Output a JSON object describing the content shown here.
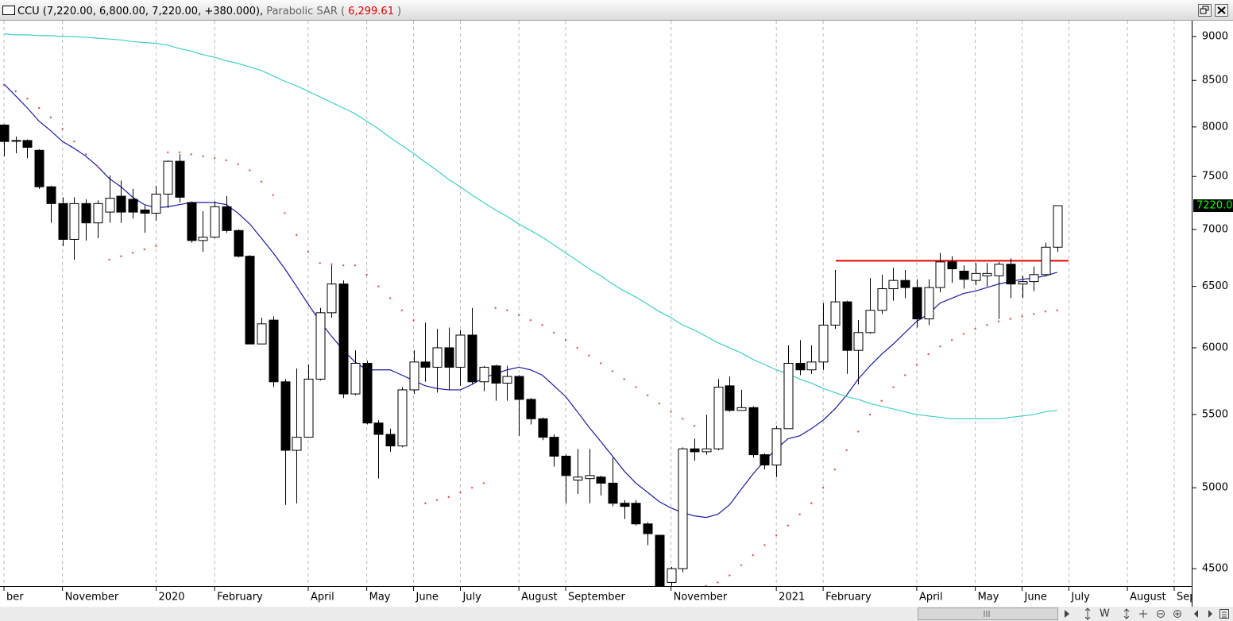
{
  "chart_data": {
    "type": "candlestick",
    "title_parts": [
      {
        "text": "CCU (7,220.00, 6,800.00, 7,220.00, +380.000),",
        "color": "#000000"
      },
      {
        "text": "Parabolic SAR (",
        "color": "#606060"
      },
      {
        "text": "6,299.61",
        "color": "#e00000"
      },
      {
        "text": ")",
        "color": "#606060"
      }
    ],
    "log_scale": true,
    "ylim": [
      4399,
      9188
    ],
    "yticks": [
      4500,
      5000,
      5500,
      6000,
      6500,
      7000,
      7500,
      8000,
      8500,
      9000
    ],
    "grid": true,
    "last_label": "7220.0",
    "zoom_label": "W",
    "categories": [
      "ber",
      null,
      null,
      null,
      null,
      "November",
      null,
      null,
      null,
      null,
      null,
      null,
      null,
      "2020",
      null,
      null,
      null,
      null,
      "February",
      null,
      null,
      null,
      null,
      null,
      null,
      null,
      "April",
      null,
      null,
      null,
      null,
      "May",
      null,
      null,
      null,
      "June",
      null,
      null,
      null,
      "July",
      null,
      null,
      null,
      null,
      "August",
      null,
      null,
      null,
      "September",
      null,
      null,
      null,
      null,
      null,
      null,
      null,
      null,
      "November",
      null,
      null,
      null,
      null,
      null,
      null,
      null,
      null,
      "2021",
      null,
      null,
      null,
      "February",
      null,
      null,
      null,
      null,
      null,
      null,
      null,
      "April",
      null,
      null,
      null,
      null,
      "May",
      null,
      null,
      null,
      "June",
      null,
      null,
      null,
      "July",
      null,
      null,
      null,
      null,
      "August",
      null,
      null,
      null,
      "Sep"
    ],
    "open": [
      8020,
      7860,
      7860,
      7760,
      7400,
      7240,
      6910,
      7240,
      7060,
      7160,
      7310,
      7280,
      7180,
      7150,
      7330,
      7650,
      7250,
      6900,
      6930,
      7210,
      6990,
      6760,
      6030,
      6220,
      5740,
      5250,
      5340,
      5760,
      6280,
      6520,
      5650,
      5880,
      5440,
      5360,
      5280,
      5680,
      5890,
      5850,
      6000,
      5850,
      6100,
      5740,
      5860,
      5730,
      5780,
      5610,
      5470,
      5340,
      5210,
      5050,
      5060,
      5070,
      5030,
      4900,
      4900,
      4770,
      4700,
      4420,
      4500,
      5260,
      5240,
      5260,
      5710,
      5530,
      5550,
      5220,
      5150,
      5400,
      5880,
      5830,
      5890,
      6180,
      6370,
      5980,
      6120,
      6300,
      6480,
      6550,
      6490,
      6230,
      6490,
      6710,
      6630,
      6550,
      6590,
      6590,
      6690,
      6520,
      6540,
      6600,
      6840,
      null,
      null,
      null,
      null,
      null,
      null,
      null,
      null,
      null,
      null
    ],
    "high": [
      8030,
      7900,
      7870,
      7770,
      7410,
      7300,
      7300,
      7280,
      7270,
      7510,
      7460,
      7380,
      7220,
      7410,
      7660,
      7720,
      7260,
      7170,
      7260,
      7310,
      7000,
      6770,
      6240,
      6250,
      5760,
      5840,
      5870,
      6320,
      6680,
      6550,
      5980,
      5900,
      5460,
      5400,
      5700,
      5980,
      6200,
      6150,
      6160,
      6140,
      6320,
      5860,
      5870,
      5860,
      5790,
      5620,
      5480,
      5360,
      5220,
      5260,
      5260,
      5080,
      5200,
      4920,
      4920,
      4780,
      4700,
      4510,
      5270,
      5330,
      5500,
      5760,
      5780,
      5680,
      5560,
      5230,
      5420,
      6020,
      6060,
      6020,
      6360,
      6640,
      6380,
      6220,
      6570,
      6600,
      6660,
      6640,
      6560,
      6560,
      6790,
      6760,
      6680,
      6700,
      6700,
      6710,
      6740,
      6590,
      6670,
      6880,
      7220,
      null,
      null,
      null,
      null,
      null,
      null,
      null,
      null,
      null,
      null
    ],
    "low": [
      7700,
      7730,
      7680,
      7380,
      7060,
      6850,
      6730,
      6900,
      6920,
      7060,
      7060,
      7100,
      6970,
      7080,
      7200,
      7250,
      6880,
      6800,
      6920,
      6970,
      6750,
      6030,
      6030,
      5700,
      4890,
      4900,
      5340,
      5750,
      6240,
      5620,
      5640,
      5430,
      5060,
      5240,
      5270,
      5650,
      5740,
      5660,
      5680,
      5710,
      5720,
      5670,
      5600,
      5600,
      5350,
      5430,
      5320,
      5140,
      4900,
      4960,
      4900,
      4950,
      4880,
      4800,
      4760,
      4640,
      4400,
      4400,
      4480,
      5180,
      5220,
      5250,
      5520,
      5530,
      5200,
      5120,
      5070,
      5400,
      5790,
      5800,
      5830,
      6150,
      5800,
      5720,
      6110,
      6270,
      6380,
      6400,
      6160,
      6180,
      6450,
      6530,
      6480,
      6510,
      6500,
      6230,
      6400,
      6400,
      6460,
      6590,
      6800,
      null,
      null,
      null,
      null,
      null,
      null,
      null,
      null,
      null,
      null
    ],
    "close": [
      7850,
      7860,
      7790,
      7400,
      7240,
      6910,
      7240,
      7060,
      7240,
      7290,
      7160,
      7160,
      7150,
      7330,
      7650,
      7300,
      6900,
      6930,
      7210,
      6990,
      6760,
      6030,
      6190,
      5740,
      5250,
      5340,
      5760,
      6280,
      6520,
      5650,
      5880,
      5440,
      5360,
      5280,
      5680,
      5890,
      5850,
      6000,
      5850,
      6100,
      5740,
      5850,
      5730,
      5780,
      5610,
      5470,
      5340,
      5210,
      5080,
      5070,
      5080,
      5030,
      4900,
      4880,
      4770,
      4710,
      4400,
      4500,
      5260,
      5240,
      5260,
      5700,
      5530,
      5550,
      5220,
      5150,
      5400,
      5880,
      5830,
      5890,
      6180,
      6370,
      5980,
      6120,
      6300,
      6480,
      6550,
      6490,
      6230,
      6490,
      6710,
      6650,
      6560,
      6610,
      6610,
      6690,
      6520,
      6540,
      6600,
      6840,
      7220,
      null,
      null,
      null,
      null,
      null,
      null,
      null,
      null,
      null,
      null
    ],
    "sar_color": "#e05050",
    "sar": [
      8450,
      8380,
      8300,
      8200,
      8100,
      7980,
      7850,
      7720,
      7600,
      6730,
      6760,
      6790,
      6820,
      6850,
      7740,
      7740,
      7720,
      7700,
      7680,
      7660,
      7620,
      7560,
      7450,
      7320,
      7150,
      6950,
      6800,
      6700,
      6690,
      6680,
      6680,
      6600,
      6500,
      6400,
      6300,
      6220,
      4900,
      4920,
      4940,
      4970,
      5000,
      5030,
      6320,
      6300,
      6260,
      6220,
      6180,
      6120,
      6060,
      6000,
      5940,
      5880,
      5820,
      5760,
      5700,
      5640,
      5580,
      5520,
      5470,
      5420,
      4400,
      4420,
      4460,
      4520,
      4580,
      4640,
      4700,
      4760,
      4830,
      4900,
      5000,
      5120,
      5250,
      5380,
      5500,
      5600,
      5700,
      5790,
      5870,
      5950,
      6010,
      6060,
      6110,
      6150,
      6180,
      6210,
      6230,
      6250,
      6270,
      6290,
      6299.61,
      null,
      null,
      null,
      null,
      null,
      null,
      null,
      null,
      null,
      null
    ],
    "series": [
      {
        "color": "#1a1aa0",
        "values": [
          8460,
          8330,
          8200,
          8060,
          7960,
          7850,
          7780,
          7700,
          7600,
          7480,
          7400,
          7300,
          7230,
          7200,
          7210,
          7230,
          7250,
          7250,
          7250,
          7230,
          7150,
          7050,
          6920,
          6790,
          6650,
          6500,
          6350,
          6210,
          6090,
          5980,
          5890,
          5830,
          5830,
          5830,
          5790,
          5750,
          5710,
          5690,
          5680,
          5680,
          5720,
          5770,
          5800,
          5830,
          5850,
          5830,
          5790,
          5710,
          5630,
          5520,
          5410,
          5310,
          5210,
          5110,
          5030,
          4970,
          4910,
          4870,
          4840,
          4820,
          4810,
          4830,
          4890,
          4990,
          5090,
          5180,
          5260,
          5330,
          5350,
          5400,
          5460,
          5540,
          5640,
          5760,
          5860,
          5950,
          6030,
          6120,
          6210,
          6270,
          6360,
          6400,
          6440,
          6460,
          6490,
          6520,
          6540,
          6560,
          6570,
          6590,
          6620,
          null,
          null,
          null,
          null,
          null,
          null,
          null,
          null,
          null,
          null
        ]
      },
      {
        "color": "#40cfc4",
        "values": [
          9030,
          9020,
          9020,
          9010,
          9010,
          9000,
          9000,
          8990,
          8980,
          8970,
          8960,
          8940,
          8930,
          8920,
          8900,
          8860,
          8830,
          8790,
          8760,
          8720,
          8690,
          8650,
          8610,
          8550,
          8490,
          8440,
          8380,
          8320,
          8260,
          8200,
          8140,
          8060,
          7980,
          7890,
          7810,
          7730,
          7640,
          7560,
          7470,
          7400,
          7320,
          7250,
          7180,
          7120,
          7050,
          6990,
          6930,
          6860,
          6790,
          6720,
          6650,
          6590,
          6520,
          6460,
          6410,
          6350,
          6290,
          6240,
          6180,
          6140,
          6090,
          6040,
          6000,
          5960,
          5910,
          5870,
          5830,
          5800,
          5760,
          5730,
          5690,
          5660,
          5630,
          5610,
          5580,
          5560,
          5540,
          5520,
          5500,
          5490,
          5480,
          5470,
          5470,
          5470,
          5470,
          5470,
          5480,
          5490,
          5500,
          5520,
          5530,
          null,
          null,
          null,
          null,
          null,
          null,
          null,
          null,
          null,
          null
        ]
      }
    ],
    "hline": {
      "value": 6720,
      "color": "#e00000"
    }
  }
}
